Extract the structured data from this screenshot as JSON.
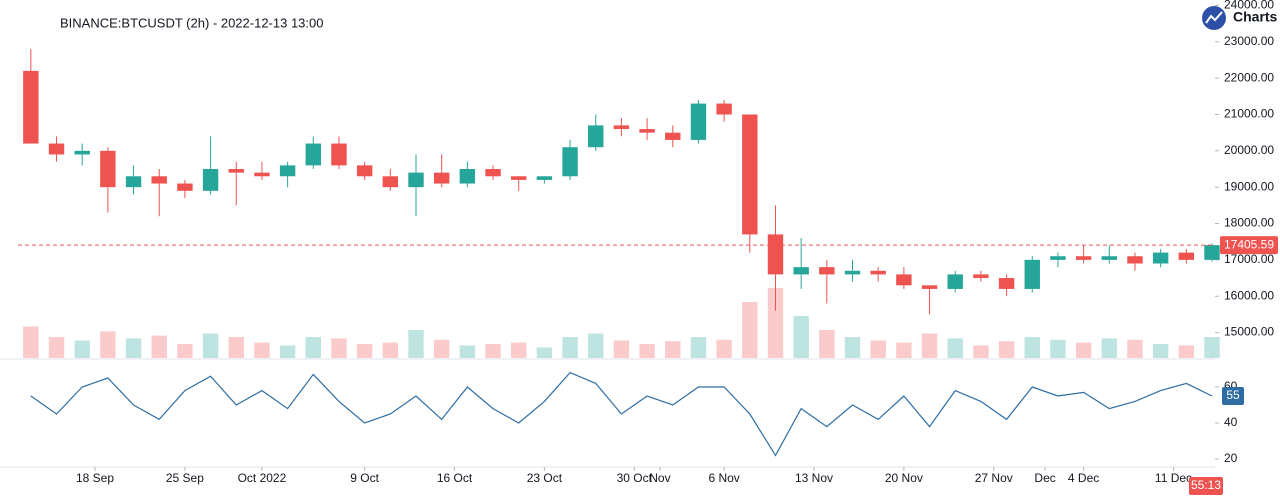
{
  "brand": "Charts p",
  "chart_data": [
    {
      "type": "candlestick",
      "title": "BINANCE:BTCUSDT (2h) - 2022-12-13 13:00",
      "x": [
        "2022-09-12",
        "2022-09-14",
        "2022-09-16",
        "2022-09-18",
        "2022-09-20",
        "2022-09-22",
        "2022-09-24",
        "2022-09-26",
        "2022-09-28",
        "2022-09-30",
        "2022-10-02",
        "2022-10-04",
        "2022-10-06",
        "2022-10-08",
        "2022-10-10",
        "2022-10-12",
        "2022-10-14",
        "2022-10-16",
        "2022-10-18",
        "2022-10-20",
        "2022-10-22",
        "2022-10-24",
        "2022-10-26",
        "2022-10-28",
        "2022-10-30",
        "2022-11-01",
        "2022-11-03",
        "2022-11-05",
        "2022-11-07",
        "2022-11-09",
        "2022-11-11",
        "2022-11-13",
        "2022-11-15",
        "2022-11-17",
        "2022-11-19",
        "2022-11-21",
        "2022-11-23",
        "2022-11-25",
        "2022-11-27",
        "2022-11-29",
        "2022-12-01",
        "2022-12-03",
        "2022-12-05",
        "2022-12-07",
        "2022-12-09",
        "2022-12-11",
        "2022-12-13"
      ],
      "open": [
        22200,
        20200,
        19900,
        20000,
        19000,
        19300,
        19100,
        18900,
        19500,
        19400,
        19300,
        19600,
        20200,
        19600,
        19300,
        19000,
        19400,
        19100,
        19500,
        19300,
        19200,
        19300,
        20100,
        20700,
        20600,
        20500,
        20300,
        21300,
        21000,
        17700,
        16600,
        16800,
        16600,
        16700,
        16600,
        16300,
        16200,
        16600,
        16500,
        16200,
        17000,
        17100,
        17000,
        17100,
        16900,
        17200,
        17000
      ],
      "high": [
        22800,
        20400,
        20200,
        20100,
        19600,
        19500,
        19200,
        20400,
        19700,
        19700,
        19700,
        20400,
        20400,
        19700,
        19500,
        19900,
        19900,
        19700,
        19600,
        19300,
        19300,
        20300,
        21000,
        20900,
        20900,
        20700,
        21400,
        21400,
        21000,
        18500,
        17600,
        17000,
        17000,
        16800,
        16800,
        16300,
        16700,
        16700,
        16600,
        17100,
        17200,
        17400,
        17400,
        17200,
        17300,
        17300,
        17450
      ],
      "low": [
        20200,
        19700,
        19600,
        18300,
        18800,
        18200,
        18700,
        18800,
        18500,
        19200,
        19000,
        19500,
        19500,
        19200,
        18900,
        18200,
        19000,
        19000,
        19200,
        18900,
        19100,
        19200,
        20000,
        20400,
        20300,
        20100,
        20200,
        20800,
        17200,
        15600,
        16200,
        15800,
        16400,
        16400,
        16200,
        15500,
        16100,
        16400,
        16000,
        16100,
        16800,
        16900,
        16900,
        16700,
        16800,
        16900,
        16950
      ],
      "close": [
        20200,
        19900,
        20000,
        19000,
        19300,
        19100,
        18900,
        19500,
        19400,
        19300,
        19600,
        20200,
        19600,
        19300,
        19000,
        19400,
        19100,
        19500,
        19300,
        19200,
        19300,
        20100,
        20700,
        20600,
        20500,
        20300,
        21300,
        21000,
        17700,
        16600,
        16800,
        16600,
        16700,
        16600,
        16300,
        16200,
        16600,
        16500,
        16200,
        17000,
        17100,
        17000,
        17100,
        16900,
        17200,
        17000,
        17405.59
      ],
      "volume": [
        45,
        30,
        25,
        38,
        28,
        32,
        20,
        35,
        30,
        22,
        18,
        30,
        28,
        20,
        22,
        40,
        26,
        18,
        20,
        22,
        15,
        30,
        35,
        25,
        20,
        24,
        30,
        26,
        80,
        100,
        60,
        40,
        30,
        25,
        22,
        35,
        28,
        18,
        24,
        30,
        26,
        22,
        28,
        26,
        20,
        18,
        30
      ],
      "up_color": "#26a69a",
      "down_color": "#ef5350",
      "xlim": [
        "2022-09-12",
        "2022-12-14"
      ],
      "xticks": [
        {
          "value": "2022-09-18",
          "label": "18 Sep"
        },
        {
          "value": "2022-09-25",
          "label": "25 Sep"
        },
        {
          "value": "2022-10-01",
          "label": "Oct 2022"
        },
        {
          "value": "2022-10-09",
          "label": "9 Oct"
        },
        {
          "value": "2022-10-16",
          "label": "16 Oct"
        },
        {
          "value": "2022-10-23",
          "label": "23 Oct"
        },
        {
          "value": "2022-10-30",
          "label": "30 Oct"
        },
        {
          "value": "2022-11-01",
          "label": "Nov"
        },
        {
          "value": "2022-11-06",
          "label": "6 Nov"
        },
        {
          "value": "2022-11-13",
          "label": "13 Nov"
        },
        {
          "value": "2022-11-20",
          "label": "20 Nov"
        },
        {
          "value": "2022-11-27",
          "label": "27 Nov"
        },
        {
          "value": "2022-12-01",
          "label": "Dec"
        },
        {
          "value": "2022-12-04",
          "label": "4 Dec"
        },
        {
          "value": "2022-12-11",
          "label": "11 Dec"
        }
      ],
      "ylim": [
        14300,
        24150
      ],
      "yticks": [
        {
          "value": 15000,
          "label": "15000.00"
        },
        {
          "value": 16000,
          "label": "16000.00"
        },
        {
          "value": 17000,
          "label": "17000.00"
        },
        {
          "value": 18000,
          "label": "18000.00"
        },
        {
          "value": 19000,
          "label": "19000.00"
        },
        {
          "value": 20000,
          "label": "20000.00"
        },
        {
          "value": 21000,
          "label": "21000.00"
        },
        {
          "value": 22000,
          "label": "22000.00"
        },
        {
          "value": 23000,
          "label": "23000.00"
        },
        {
          "value": 24000,
          "label": "24000.00"
        }
      ],
      "countdown": "55:13"
    },
    {
      "type": "line",
      "color": "#2e6da4",
      "values": [
        55,
        45,
        60,
        65,
        50,
        42,
        58,
        66,
        50,
        58,
        48,
        67,
        52,
        40,
        45,
        55,
        42,
        60,
        48,
        40,
        52,
        68,
        62,
        45,
        55,
        50,
        60,
        60,
        45,
        22,
        48,
        38,
        50,
        42,
        55,
        38,
        58,
        52,
        42,
        60,
        55,
        57,
        48,
        52,
        58,
        62,
        55
      ],
      "ylim": [
        15,
        75
      ],
      "yticks": [
        20,
        40,
        60
      ]
    }
  ]
}
